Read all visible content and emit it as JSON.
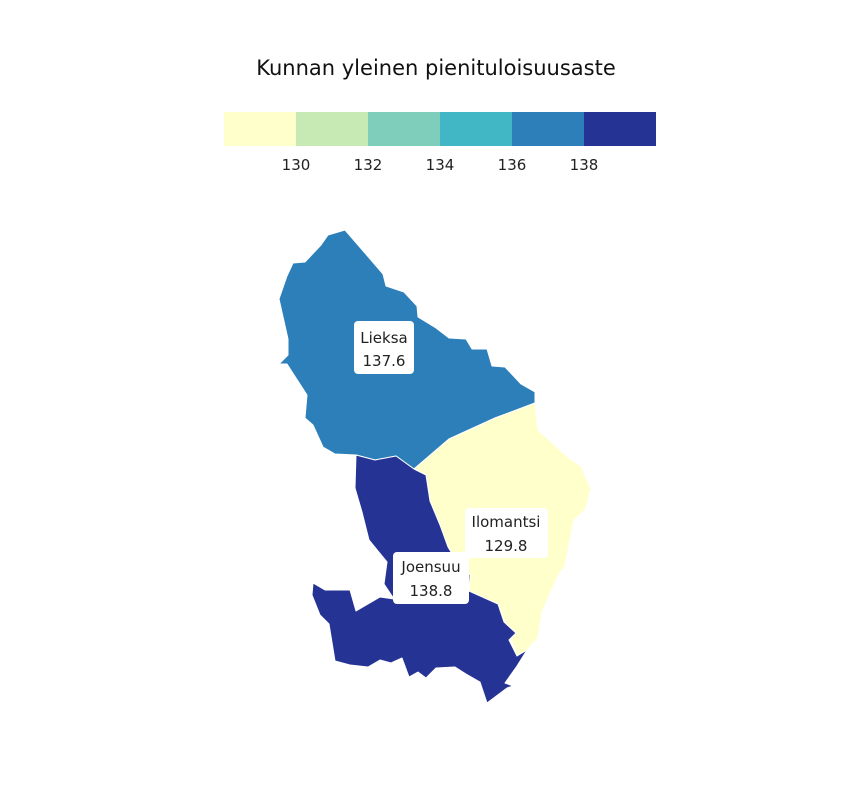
{
  "title": "Kunnan yleinen pienituloisuusaste",
  "legend": {
    "colors": [
      "#ffffcc",
      "#c7e9b4",
      "#7fcdbb",
      "#41b6c4",
      "#2c7fb8",
      "#253494"
    ],
    "ticks": [
      "130",
      "132",
      "134",
      "136",
      "138"
    ]
  },
  "regions": [
    {
      "name": "Lieksa",
      "value": "137.6",
      "color": "#2c7fb8"
    },
    {
      "name": "Ilomantsi",
      "value": "129.8",
      "color": "#ffffcc"
    },
    {
      "name": "Joensuu",
      "value": "138.8",
      "color": "#253494"
    }
  ]
}
